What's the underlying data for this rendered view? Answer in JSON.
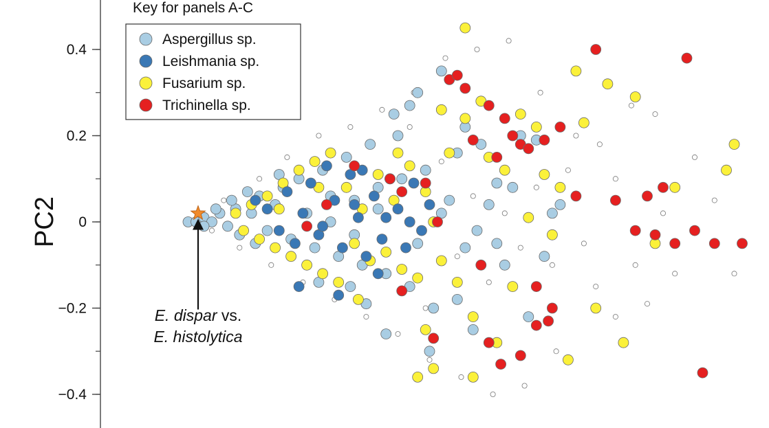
{
  "chart_data": {
    "type": "scatter",
    "ylabel": "PC2",
    "xlabel": "",
    "ylim": [
      -0.44,
      0.48
    ],
    "xlim": [
      -0.1,
      1.45
    ],
    "y_ticks": [
      {
        "value": 0.4,
        "label": "0.4"
      },
      {
        "value": 0.2,
        "label": "0.2"
      },
      {
        "value": 0,
        "label": "0"
      },
      {
        "value": -0.2,
        "label": "−0.2"
      },
      {
        "value": -0.4,
        "label": "−0.4"
      }
    ],
    "grid": false,
    "legend": {
      "title": "Key for panels A-C",
      "placement": "top-left"
    },
    "annotation": {
      "line1_italic": "E. dispar",
      "line1_rest": " vs.",
      "line2": "E. histolytica",
      "target": [
        0,
        0.02
      ]
    },
    "series": [
      {
        "name": "Aspergillus sp.",
        "color": "#a9cde3",
        "points": [
          [
            0.02,
            0.0
          ],
          [
            0.04,
            0.0
          ],
          [
            0.06,
            0.01
          ],
          [
            0.08,
            0.0
          ],
          [
            0.1,
            0.02
          ],
          [
            0.12,
            -0.01
          ],
          [
            0.14,
            0.03
          ],
          [
            0.06,
            -0.01
          ],
          [
            0.09,
            0.03
          ],
          [
            0.13,
            0.05
          ],
          [
            0.15,
            -0.03
          ],
          [
            0.18,
            0.02
          ],
          [
            0.2,
            0.06
          ],
          [
            0.22,
            -0.02
          ],
          [
            0.24,
            0.04
          ],
          [
            0.17,
            0.07
          ],
          [
            0.19,
            -0.05
          ],
          [
            0.26,
            0.08
          ],
          [
            0.28,
            -0.04
          ],
          [
            0.3,
            0.1
          ],
          [
            0.32,
            0.02
          ],
          [
            0.34,
            -0.06
          ],
          [
            0.36,
            0.12
          ],
          [
            0.38,
            0.0
          ],
          [
            0.4,
            -0.08
          ],
          [
            0.42,
            0.15
          ],
          [
            0.44,
            0.05
          ],
          [
            0.46,
            -0.1
          ],
          [
            0.48,
            0.18
          ],
          [
            0.5,
            0.08
          ],
          [
            0.52,
            -0.12
          ],
          [
            0.54,
            0.25
          ],
          [
            0.56,
            0.1
          ],
          [
            0.58,
            -0.15
          ],
          [
            0.6,
            0.3
          ],
          [
            0.62,
            0.12
          ],
          [
            0.64,
            -0.2
          ],
          [
            0.66,
            0.35
          ],
          [
            0.68,
            0.05
          ],
          [
            0.7,
            -0.18
          ],
          [
            0.72,
            0.22
          ],
          [
            0.74,
            -0.25
          ],
          [
            0.76,
            0.18
          ],
          [
            0.78,
            0.04
          ],
          [
            0.8,
            -0.05
          ],
          [
            0.82,
            -0.1
          ],
          [
            0.84,
            0.08
          ],
          [
            0.86,
            0.2
          ],
          [
            0.88,
            -0.22
          ],
          [
            0.9,
            0.19
          ],
          [
            0.92,
            -0.08
          ],
          [
            0.94,
            0.02
          ],
          [
            0.96,
            0.04
          ],
          [
            0.63,
            -0.3
          ],
          [
            0.58,
            0.27
          ],
          [
            0.52,
            -0.26
          ],
          [
            0.47,
            -0.19
          ],
          [
            0.35,
            -0.14
          ],
          [
            0.25,
            0.11
          ],
          [
            0.7,
            0.16
          ],
          [
            0.72,
            -0.06
          ],
          [
            0.55,
            0.2
          ],
          [
            0.43,
            -0.15
          ],
          [
            0.8,
            0.09
          ],
          [
            0.75,
            -0.02
          ],
          [
            0.66,
            0.02
          ],
          [
            0.6,
            -0.05
          ],
          [
            0.5,
            0.03
          ],
          [
            0.44,
            -0.03
          ],
          [
            0.38,
            0.06
          ]
        ]
      },
      {
        "name": "Leishmania sp.",
        "color": "#3a78b5",
        "points": [
          [
            0.19,
            0.05
          ],
          [
            0.22,
            0.03
          ],
          [
            0.25,
            -0.02
          ],
          [
            0.27,
            0.07
          ],
          [
            0.29,
            -0.05
          ],
          [
            0.31,
            0.02
          ],
          [
            0.33,
            0.09
          ],
          [
            0.35,
            -0.03
          ],
          [
            0.37,
            0.13
          ],
          [
            0.39,
            0.05
          ],
          [
            0.41,
            -0.06
          ],
          [
            0.43,
            0.11
          ],
          [
            0.45,
            0.01
          ],
          [
            0.47,
            -0.08
          ],
          [
            0.49,
            0.06
          ],
          [
            0.51,
            -0.04
          ],
          [
            0.53,
            0.1
          ],
          [
            0.55,
            0.03
          ],
          [
            0.57,
            -0.06
          ],
          [
            0.59,
            0.09
          ],
          [
            0.61,
            -0.02
          ],
          [
            0.63,
            0.04
          ],
          [
            0.3,
            -0.15
          ],
          [
            0.4,
            -0.17
          ],
          [
            0.5,
            -0.12
          ],
          [
            0.46,
            0.12
          ],
          [
            0.58,
            0.0
          ],
          [
            0.44,
            0.04
          ],
          [
            0.36,
            -0.01
          ],
          [
            0.52,
            0.01
          ]
        ]
      },
      {
        "name": "Fusarium sp.",
        "color": "#fbf13a",
        "points": [
          [
            0.14,
            0.02
          ],
          [
            0.16,
            -0.02
          ],
          [
            0.18,
            0.04
          ],
          [
            0.2,
            -0.04
          ],
          [
            0.22,
            0.06
          ],
          [
            0.24,
            -0.06
          ],
          [
            0.26,
            0.09
          ],
          [
            0.28,
            -0.08
          ],
          [
            0.3,
            0.12
          ],
          [
            0.32,
            -0.1
          ],
          [
            0.34,
            0.14
          ],
          [
            0.36,
            -0.12
          ],
          [
            0.38,
            0.16
          ],
          [
            0.4,
            -0.14
          ],
          [
            0.42,
            0.08
          ],
          [
            0.44,
            -0.05
          ],
          [
            0.46,
            0.03
          ],
          [
            0.48,
            -0.09
          ],
          [
            0.5,
            0.11
          ],
          [
            0.52,
            -0.07
          ],
          [
            0.54,
            0.05
          ],
          [
            0.56,
            -0.11
          ],
          [
            0.58,
            0.13
          ],
          [
            0.6,
            -0.13
          ],
          [
            0.62,
            0.07
          ],
          [
            0.64,
            0.0
          ],
          [
            0.66,
            -0.09
          ],
          [
            0.68,
            0.16
          ],
          [
            0.7,
            -0.14
          ],
          [
            0.72,
            0.24
          ],
          [
            0.74,
            -0.22
          ],
          [
            0.76,
            0.28
          ],
          [
            0.78,
            0.15
          ],
          [
            0.8,
            -0.28
          ],
          [
            0.82,
            0.12
          ],
          [
            0.84,
            -0.15
          ],
          [
            0.86,
            0.25
          ],
          [
            0.88,
            0.01
          ],
          [
            0.9,
            0.22
          ],
          [
            0.92,
            0.11
          ],
          [
            0.94,
            -0.03
          ],
          [
            0.96,
            0.08
          ],
          [
            0.98,
            -0.32
          ],
          [
            1.0,
            0.35
          ],
          [
            1.02,
            0.23
          ],
          [
            1.05,
            -0.2
          ],
          [
            1.08,
            0.32
          ],
          [
            1.12,
            -0.28
          ],
          [
            1.15,
            0.29
          ],
          [
            1.2,
            -0.05
          ],
          [
            1.25,
            0.08
          ],
          [
            0.72,
            0.45
          ],
          [
            0.6,
            -0.36
          ],
          [
            0.64,
            -0.34
          ],
          [
            0.74,
            -0.36
          ],
          [
            1.4,
            0.18
          ],
          [
            1.38,
            0.12
          ],
          [
            0.55,
            0.16
          ],
          [
            0.35,
            0.08
          ],
          [
            0.25,
            0.03
          ],
          [
            0.45,
            -0.18
          ],
          [
            0.62,
            -0.25
          ],
          [
            0.66,
            0.26
          ]
        ]
      },
      {
        "name": "Trichinella sp.",
        "color": "#e52020",
        "points": [
          [
            0.32,
            -0.01
          ],
          [
            0.37,
            0.04
          ],
          [
            0.44,
            0.13
          ],
          [
            0.53,
            0.1
          ],
          [
            0.56,
            -0.16
          ],
          [
            0.62,
            0.09
          ],
          [
            0.65,
            0.0
          ],
          [
            0.68,
            0.33
          ],
          [
            0.7,
            0.34
          ],
          [
            0.72,
            0.31
          ],
          [
            0.74,
            0.19
          ],
          [
            0.76,
            -0.1
          ],
          [
            0.78,
            0.27
          ],
          [
            0.8,
            0.15
          ],
          [
            0.82,
            0.24
          ],
          [
            0.84,
            0.2
          ],
          [
            0.86,
            0.18
          ],
          [
            0.88,
            0.17
          ],
          [
            0.9,
            -0.15
          ],
          [
            0.92,
            0.19
          ],
          [
            0.94,
            -0.2
          ],
          [
            0.96,
            0.22
          ],
          [
            1.0,
            0.06
          ],
          [
            1.05,
            0.4
          ],
          [
            1.1,
            0.05
          ],
          [
            1.15,
            -0.02
          ],
          [
            1.18,
            0.06
          ],
          [
            1.2,
            -0.03
          ],
          [
            1.22,
            0.08
          ],
          [
            1.25,
            -0.05
          ],
          [
            1.28,
            0.38
          ],
          [
            1.3,
            -0.02
          ],
          [
            1.32,
            -0.35
          ],
          [
            1.35,
            -0.05
          ],
          [
            1.42,
            -0.05
          ],
          [
            0.64,
            -0.27
          ],
          [
            0.78,
            -0.28
          ],
          [
            0.81,
            -0.33
          ],
          [
            0.86,
            -0.31
          ],
          [
            0.9,
            -0.24
          ],
          [
            0.93,
            -0.23
          ],
          [
            0.56,
            0.07
          ]
        ]
      },
      {
        "name": "",
        "color": "#ffffff",
        "points": [
          [
            0.05,
            0.02
          ],
          [
            0.08,
            -0.02
          ],
          [
            0.11,
            0.05
          ],
          [
            0.15,
            -0.06
          ],
          [
            0.2,
            0.1
          ],
          [
            0.23,
            -0.1
          ],
          [
            0.27,
            0.15
          ],
          [
            0.31,
            -0.14
          ],
          [
            0.35,
            0.2
          ],
          [
            0.39,
            -0.18
          ],
          [
            0.43,
            0.22
          ],
          [
            0.47,
            -0.22
          ],
          [
            0.51,
            0.26
          ],
          [
            0.55,
            -0.26
          ],
          [
            0.59,
            0.3
          ],
          [
            0.63,
            -0.32
          ],
          [
            0.67,
            0.38
          ],
          [
            0.71,
            -0.36
          ],
          [
            0.75,
            0.4
          ],
          [
            0.79,
            -0.4
          ],
          [
            0.83,
            0.42
          ],
          [
            0.87,
            -0.38
          ],
          [
            0.91,
            0.3
          ],
          [
            0.95,
            -0.3
          ],
          [
            1.0,
            0.2
          ],
          [
            1.05,
            -0.15
          ],
          [
            1.1,
            0.1
          ],
          [
            1.15,
            -0.1
          ],
          [
            1.2,
            0.25
          ],
          [
            1.25,
            -0.12
          ],
          [
            1.3,
            0.15
          ],
          [
            1.35,
            0.05
          ],
          [
            1.4,
            -0.12
          ],
          [
            0.58,
            0.22
          ],
          [
            0.62,
            -0.2
          ],
          [
            0.66,
            0.14
          ],
          [
            0.7,
            -0.08
          ],
          [
            0.74,
            0.06
          ],
          [
            0.78,
            -0.14
          ],
          [
            0.82,
            0.02
          ],
          [
            0.86,
            -0.06
          ],
          [
            0.9,
            0.08
          ],
          [
            0.94,
            -0.1
          ],
          [
            0.98,
            0.12
          ],
          [
            1.02,
            -0.05
          ],
          [
            1.06,
            0.18
          ],
          [
            1.1,
            -0.22
          ],
          [
            1.14,
            0.27
          ],
          [
            1.18,
            -0.19
          ],
          [
            1.22,
            0.02
          ]
        ]
      }
    ]
  }
}
